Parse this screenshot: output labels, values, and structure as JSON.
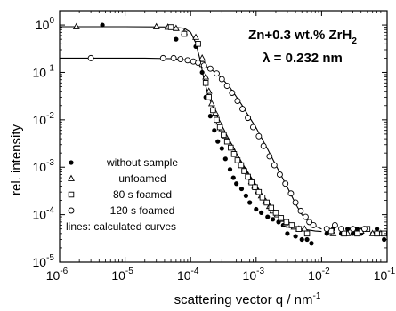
{
  "chart_data": {
    "type": "scatter",
    "title": "",
    "xlabel": "scattering vector q / nm",
    "xlabel_exp": "-1",
    "ylabel": "rel. intensity",
    "xscale": "log",
    "yscale": "log",
    "xlim": [
      1e-06,
      0.1
    ],
    "ylim": [
      1e-05,
      2
    ],
    "x_ticks": [
      {
        "base": "10",
        "exp": "-6"
      },
      {
        "base": "10",
        "exp": "-5"
      },
      {
        "base": "10",
        "exp": "-4"
      },
      {
        "base": "10",
        "exp": "-3"
      },
      {
        "base": "10",
        "exp": "-2"
      },
      {
        "base": "10",
        "exp": "-1"
      }
    ],
    "y_ticks": [
      {
        "base": "10",
        "exp": "0"
      },
      {
        "base": "10",
        "exp": "-1"
      },
      {
        "base": "10",
        "exp": "-2"
      },
      {
        "base": "10",
        "exp": "-3"
      },
      {
        "base": "10",
        "exp": "-4"
      },
      {
        "base": "10",
        "exp": "-5"
      }
    ],
    "annotation": {
      "line1_prefix": "Zn+0.3 wt.% ZrH",
      "line1_sub": "2",
      "line2": "λ = 0.232 nm"
    },
    "legend_position": "lower-left",
    "legend_note": "lines: calculated curves",
    "series": [
      {
        "name": "without sample",
        "marker": "filled-circle",
        "color": "#000000",
        "x": [
          4.5e-06,
          6e-05,
          0.00012,
          0.00015,
          0.00017,
          0.0002,
          0.00023,
          0.00026,
          0.0003,
          0.00034,
          0.0004,
          0.00045,
          0.0005,
          0.0006,
          0.0007,
          0.0008,
          0.001,
          0.0012,
          0.0015,
          0.0018,
          0.0022,
          0.0026,
          0.003,
          0.004,
          0.005,
          0.006,
          0.007,
          0.012,
          0.015,
          0.02,
          0.025,
          0.03,
          0.035,
          0.04,
          0.05,
          0.06,
          0.07,
          0.09
        ],
        "y": [
          1.0,
          0.5,
          0.35,
          0.1,
          0.03,
          0.012,
          0.006,
          0.0035,
          0.0025,
          0.0015,
          0.0009,
          0.0006,
          0.00045,
          0.00035,
          0.00025,
          0.00018,
          0.00013,
          0.00011,
          9e-05,
          8e-05,
          7e-05,
          6e-05,
          4e-05,
          3.5e-05,
          3e-05,
          3e-05,
          2.5e-05,
          4e-05,
          5e-05,
          4e-05,
          5e-05,
          4e-05,
          5e-05,
          4e-05,
          5e-05,
          4e-05,
          5e-05,
          3e-05
        ]
      },
      {
        "name": "unfoamed",
        "marker": "open-triangle",
        "color": "#000000",
        "x": [
          1.8e-06,
          3e-05,
          4.5e-05,
          6e-05,
          8e-05,
          0.00012,
          0.00015,
          0.00017,
          0.00019,
          0.00021,
          0.00024,
          0.00027,
          0.0003,
          0.00034,
          0.00038,
          0.00043,
          0.00048,
          0.00054,
          0.0006,
          0.00068,
          0.00076,
          0.00085,
          0.00095,
          0.00107,
          0.0012,
          0.0014,
          0.0016,
          0.0018,
          0.0021,
          0.0024,
          0.0028,
          0.0032,
          0.0038,
          0.0045,
          0.0055,
          0.015,
          0.025,
          0.04,
          0.06,
          0.08
        ],
        "y": [
          0.92,
          0.92,
          0.9,
          0.85,
          0.7,
          0.55,
          0.2,
          0.08,
          0.04,
          0.022,
          0.014,
          0.009,
          0.0065,
          0.0046,
          0.0035,
          0.0026,
          0.0019,
          0.0014,
          0.0011,
          0.00085,
          0.00066,
          0.0005,
          0.0004,
          0.00031,
          0.00025,
          0.00019,
          0.00015,
          0.00012,
          0.0001,
          8e-05,
          6.5e-05,
          6e-05,
          5.5e-05,
          5e-05,
          5e-05,
          4e-05,
          4e-05,
          4.5e-05,
          4e-05,
          4e-05
        ]
      },
      {
        "name": "80 s foamed",
        "marker": "open-square",
        "color": "#000000",
        "x": [
          5e-05,
          8e-05,
          0.00013,
          0.00015,
          0.00017,
          0.00019,
          0.00022,
          0.00025,
          0.00028,
          0.00032,
          0.00036,
          0.00041,
          0.00046,
          0.00052,
          0.00059,
          0.00066,
          0.00075,
          0.00085,
          0.00096,
          0.0011,
          0.00125,
          0.00145,
          0.0017,
          0.002,
          0.0024,
          0.0029,
          0.0035,
          0.0045,
          0.006,
          0.014,
          0.022,
          0.035,
          0.05,
          0.07,
          0.09
        ],
        "y": [
          0.9,
          0.65,
          0.4,
          0.15,
          0.06,
          0.03,
          0.016,
          0.01,
          0.007,
          0.0048,
          0.0035,
          0.0026,
          0.0019,
          0.0014,
          0.0011,
          0.00083,
          0.00063,
          0.00048,
          0.00038,
          0.0003,
          0.00023,
          0.00018,
          0.00014,
          0.00011,
          8.5e-05,
          7e-05,
          6e-05,
          5e-05,
          4e-05,
          4.5e-05,
          4e-05,
          4e-05,
          5e-05,
          4e-05,
          4e-05
        ]
      },
      {
        "name": "120 s foamed",
        "marker": "open-circle",
        "color": "#000000",
        "x": [
          3e-06,
          3.8e-05,
          5.5e-05,
          7e-05,
          9e-05,
          0.00011,
          0.00013,
          0.00016,
          0.0002,
          0.00025,
          0.0003,
          0.00036,
          0.00043,
          0.00052,
          0.00062,
          0.00075,
          0.0009,
          0.0011,
          0.0013,
          0.0016,
          0.0019,
          0.0023,
          0.0028,
          0.0034,
          0.004,
          0.0048,
          0.0057,
          0.0065,
          0.0075,
          0.012,
          0.016,
          0.02,
          0.03,
          0.045
        ],
        "y": [
          0.2,
          0.2,
          0.2,
          0.19,
          0.18,
          0.17,
          0.16,
          0.14,
          0.12,
          0.095,
          0.072,
          0.052,
          0.037,
          0.025,
          0.017,
          0.011,
          0.007,
          0.0045,
          0.0028,
          0.0017,
          0.0011,
          0.0007,
          0.00045,
          0.00028,
          0.00018,
          0.00012,
          9e-05,
          7e-05,
          6e-05,
          5e-05,
          6e-05,
          5e-05,
          5e-05,
          5e-05
        ]
      }
    ],
    "curves": [
      {
        "x": [
          1e-06,
          1e-05,
          5e-05,
          8e-05,
          0.0001,
          0.00012,
          0.00014,
          0.00016,
          0.00019,
          0.00023,
          0.0003,
          0.0004,
          0.0005,
          0.0007,
          0.001,
          0.0015,
          0.002,
          0.003,
          0.005,
          0.008,
          0.01
        ],
        "y": [
          0.92,
          0.92,
          0.91,
          0.85,
          0.7,
          0.42,
          0.18,
          0.07,
          0.03,
          0.016,
          0.0075,
          0.0035,
          0.002,
          0.0009,
          0.00042,
          0.00018,
          0.0001,
          6.2e-05,
          5e-05,
          4.5e-05,
          4.4e-05
        ]
      },
      {
        "x": [
          1e-06,
          2e-05,
          5e-05,
          0.0001,
          0.00015,
          0.0002,
          0.0003,
          0.0004,
          0.0006,
          0.0008,
          0.001,
          0.0015,
          0.002,
          0.003,
          0.004,
          0.005,
          0.007,
          0.01
        ],
        "y": [
          0.2,
          0.2,
          0.195,
          0.18,
          0.15,
          0.12,
          0.075,
          0.048,
          0.021,
          0.011,
          0.0068,
          0.0024,
          0.0011,
          0.00038,
          0.00017,
          0.0001,
          6.2e-05,
          5e-05
        ]
      }
    ]
  }
}
